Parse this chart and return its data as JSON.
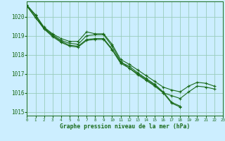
{
  "title": "Graphe pression niveau de la mer (hPa)",
  "bg_color": "#cceeff",
  "grid_color": "#99ccbb",
  "line_color": "#1a6b1a",
  "xlim": [
    0,
    23
  ],
  "ylim": [
    1014.8,
    1020.8
  ],
  "xticks": [
    0,
    1,
    2,
    3,
    4,
    5,
    6,
    7,
    8,
    9,
    10,
    11,
    12,
    13,
    14,
    15,
    16,
    17,
    18,
    19,
    20,
    21,
    22,
    23
  ],
  "yticks": [
    1015,
    1016,
    1017,
    1018,
    1019,
    1020
  ],
  "series": [
    {
      "x": [
        0,
        1,
        2,
        3,
        4,
        5,
        6,
        7,
        8,
        9,
        10,
        11,
        12,
        13,
        14,
        15,
        16,
        17,
        18,
        19,
        20,
        21,
        22
      ],
      "y": [
        1020.6,
        1020.1,
        1019.45,
        1019.1,
        1018.85,
        1018.7,
        1018.7,
        1019.2,
        1019.1,
        1019.1,
        1018.55,
        1017.75,
        1017.5,
        1017.2,
        1016.9,
        1016.6,
        1016.3,
        1016.15,
        1016.05,
        1016.35,
        1016.55,
        1016.5,
        1016.35
      ]
    },
    {
      "x": [
        0,
        1,
        2,
        3,
        4,
        5,
        6,
        7,
        8,
        9,
        10,
        11,
        12,
        13,
        14,
        15,
        16,
        17,
        18,
        19,
        20,
        21,
        22
      ],
      "y": [
        1020.6,
        1020.05,
        1019.4,
        1019.05,
        1018.75,
        1018.6,
        1018.55,
        1019.0,
        1019.05,
        1019.05,
        1018.45,
        1017.65,
        1017.3,
        1016.95,
        1016.65,
        1016.35,
        1016.0,
        1015.85,
        1015.7,
        1016.05,
        1016.35,
        1016.3,
        1016.2
      ]
    },
    {
      "x": [
        0,
        1,
        2,
        3,
        4,
        5,
        6,
        7,
        8,
        9,
        10,
        11,
        12,
        13,
        14,
        15,
        16,
        17,
        18
      ],
      "y": [
        1020.55,
        1019.95,
        1019.4,
        1019.0,
        1018.7,
        1018.5,
        1018.45,
        1018.8,
        1018.85,
        1018.85,
        1018.3,
        1017.6,
        1017.4,
        1017.05,
        1016.75,
        1016.45,
        1016.05,
        1015.5,
        1015.3
      ]
    },
    {
      "x": [
        0,
        1,
        2,
        3,
        4,
        5,
        6,
        7,
        8,
        9,
        10,
        11,
        12,
        13,
        14,
        15,
        16,
        17,
        18
      ],
      "y": [
        1020.55,
        1019.95,
        1019.35,
        1018.95,
        1018.65,
        1018.45,
        1018.4,
        1018.75,
        1018.8,
        1018.8,
        1018.25,
        1017.55,
        1017.3,
        1017.0,
        1016.7,
        1016.4,
        1016.0,
        1015.45,
        1015.25
      ]
    }
  ]
}
